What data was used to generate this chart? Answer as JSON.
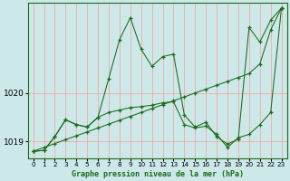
{
  "xlabel": "Graphe pression niveau de la mer (hPa)",
  "bg_color": "#cce8e8",
  "grid_color": "#ff9999",
  "line_color": "#1a6b1a",
  "xlim": [
    -0.5,
    23.5
  ],
  "ylim": [
    1018.65,
    1021.85
  ],
  "yticks": [
    1019,
    1020
  ],
  "xticks": [
    0,
    1,
    2,
    3,
    4,
    5,
    6,
    7,
    8,
    9,
    10,
    11,
    12,
    13,
    14,
    15,
    16,
    17,
    18,
    19,
    20,
    21,
    22,
    23
  ],
  "series1": [
    1018.8,
    1018.82,
    1019.1,
    1019.45,
    1019.35,
    1019.3,
    1019.5,
    1020.3,
    1021.1,
    1021.55,
    1020.9,
    1020.55,
    1020.75,
    1020.8,
    1019.55,
    1019.3,
    1019.4,
    1019.1,
    1018.95,
    1019.05,
    1021.35,
    1021.05,
    1021.5,
    1021.75
  ],
  "series2": [
    1018.8,
    1018.88,
    1018.96,
    1019.04,
    1019.12,
    1019.2,
    1019.28,
    1019.36,
    1019.44,
    1019.52,
    1019.6,
    1019.68,
    1019.76,
    1019.84,
    1019.92,
    1020.0,
    1020.08,
    1020.16,
    1020.24,
    1020.32,
    1020.4,
    1020.6,
    1021.3,
    1021.75
  ],
  "series3": [
    1018.8,
    1018.82,
    1019.1,
    1019.45,
    1019.35,
    1019.3,
    1019.5,
    1019.6,
    1019.65,
    1019.7,
    1019.72,
    1019.75,
    1019.8,
    1019.82,
    1019.35,
    1019.28,
    1019.32,
    1019.15,
    1018.88,
    1019.08,
    1019.15,
    1019.35,
    1019.6,
    1021.75
  ]
}
